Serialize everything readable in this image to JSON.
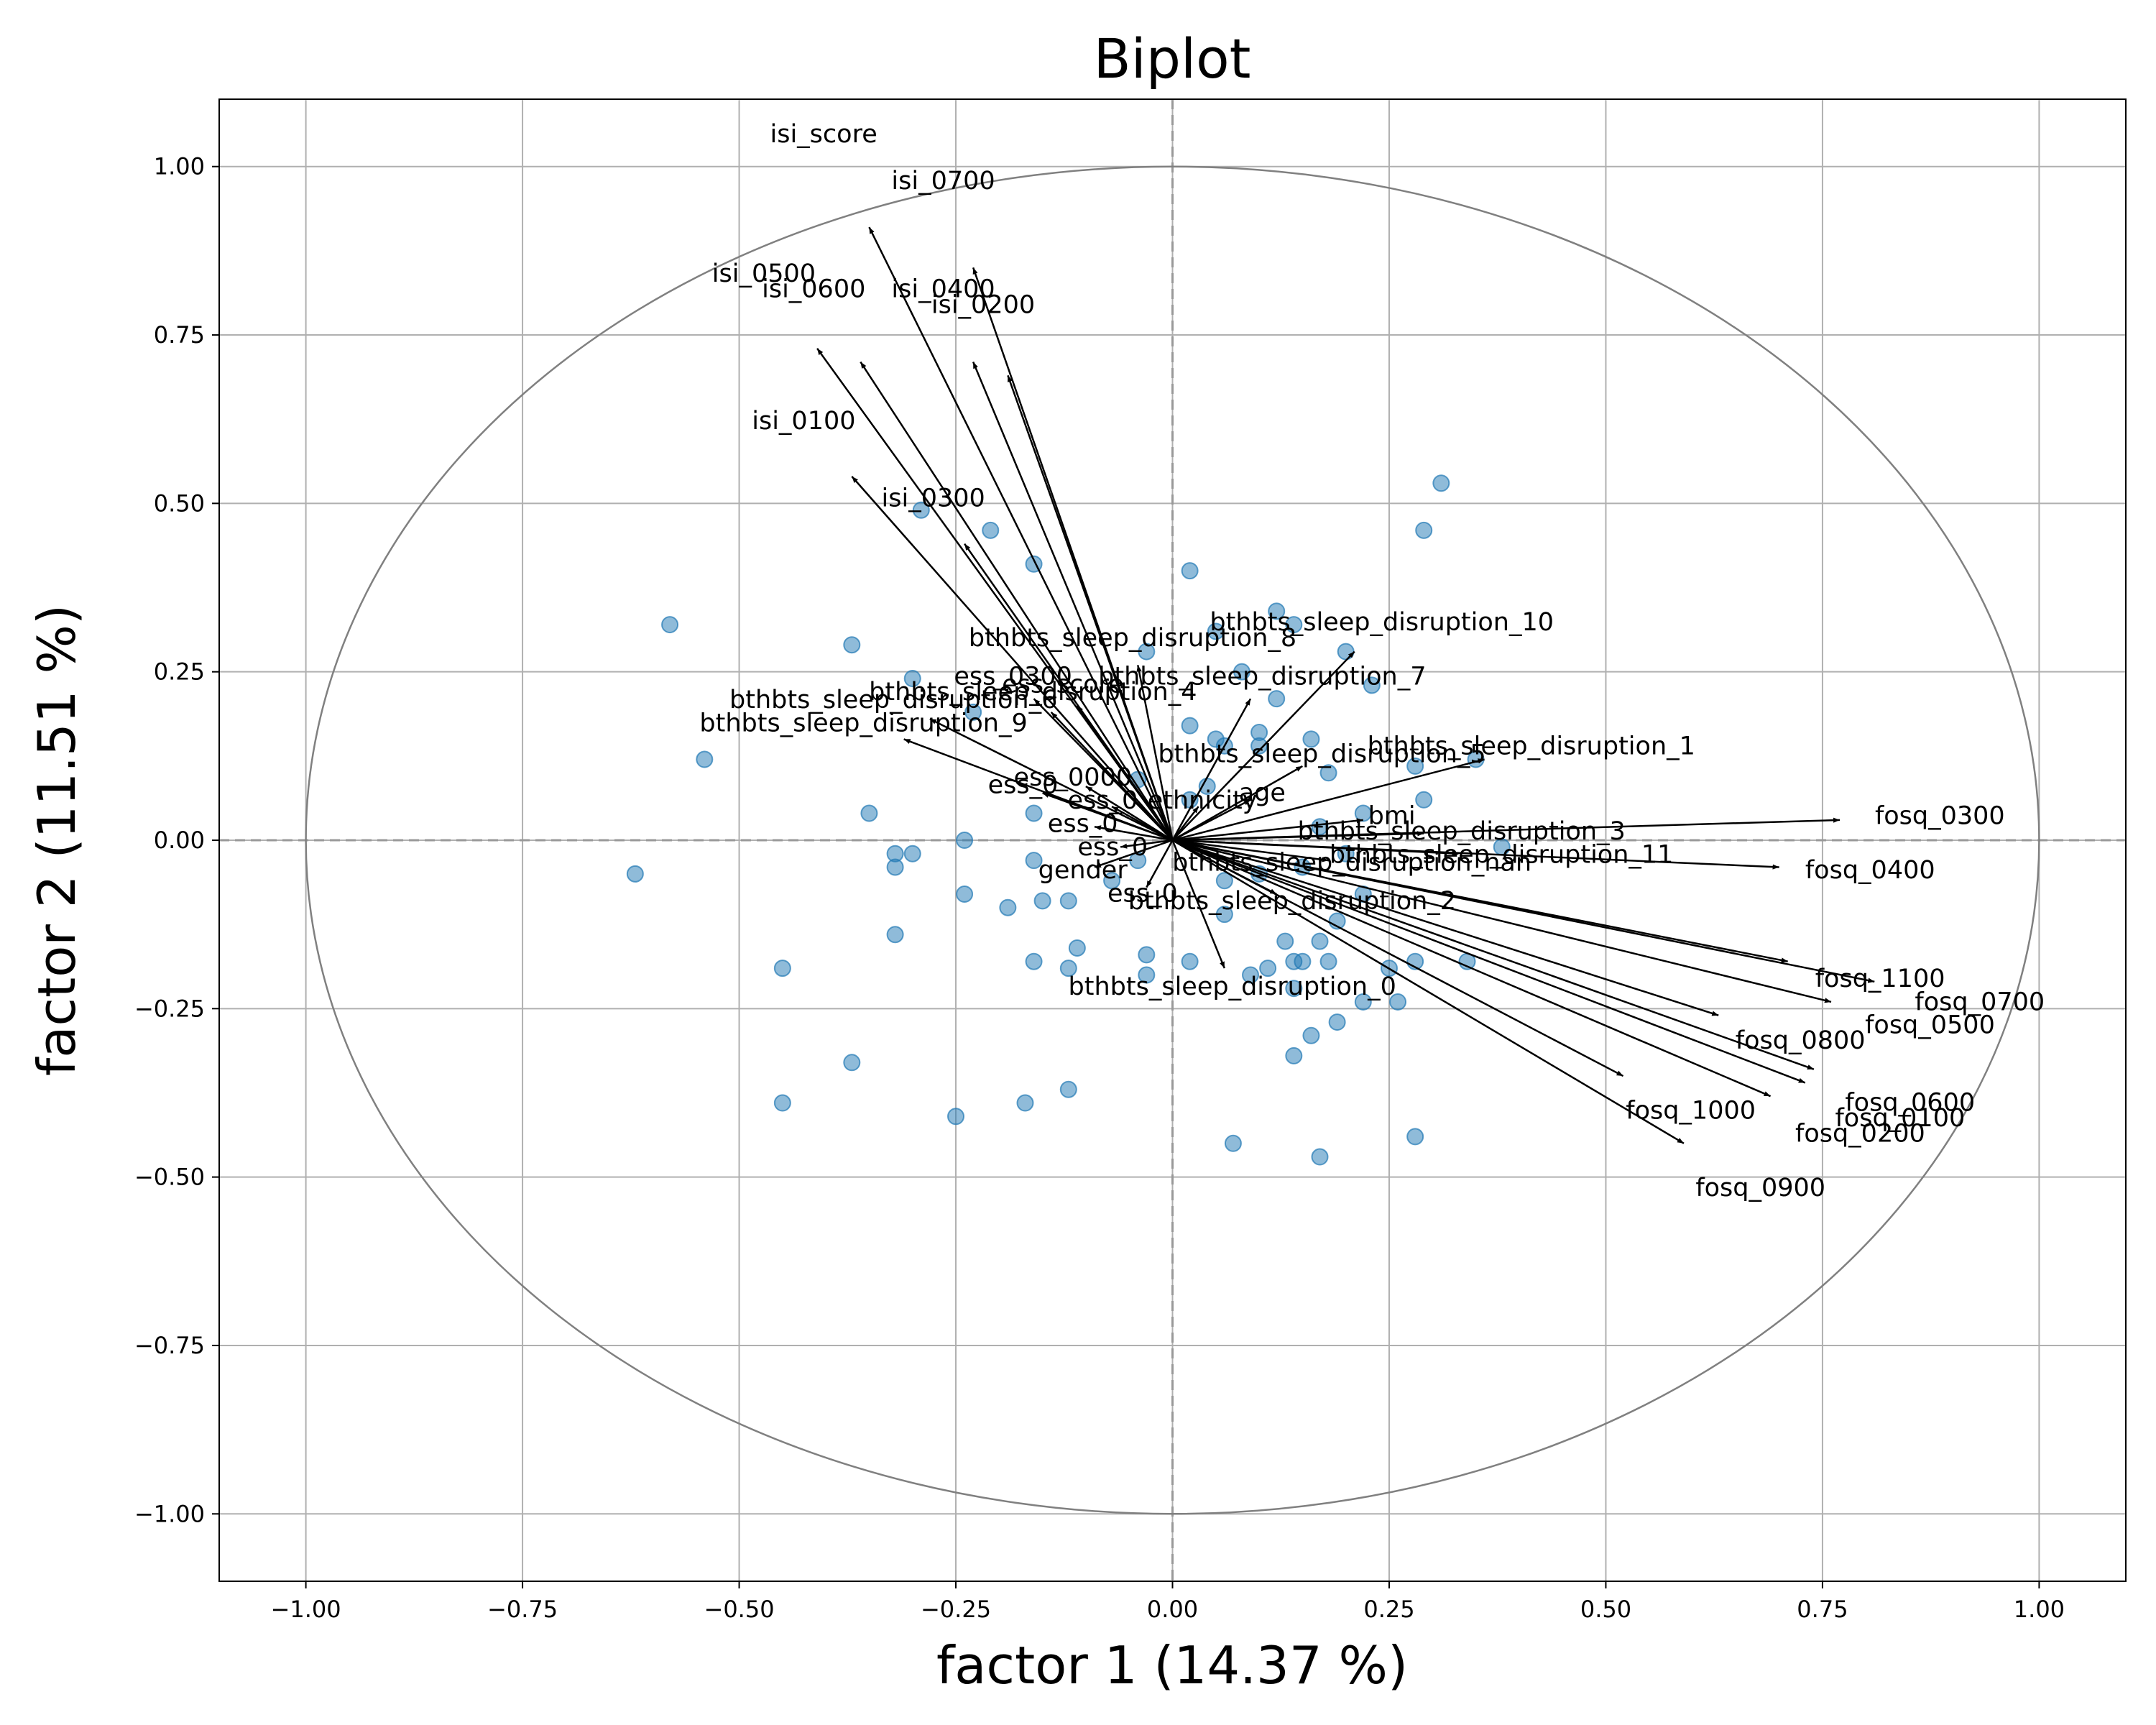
{
  "chart_data": {
    "type": "scatter",
    "title": "Biplot",
    "xlabel": "factor 1 (14.37 %)",
    "ylabel": "factor 2 (11.51 %)",
    "xlim": [
      -1.1,
      1.1
    ],
    "ylim": [
      -1.1,
      1.1
    ],
    "xticks": [
      -1.0,
      -0.75,
      -0.5,
      -0.25,
      0.0,
      0.25,
      0.5,
      0.75,
      1.0
    ],
    "yticks": [
      -1.0,
      -0.75,
      -0.5,
      -0.25,
      0.0,
      0.25,
      0.5,
      0.75,
      1.0
    ],
    "xtick_labels": [
      "−1.00",
      "−0.75",
      "−0.50",
      "−0.25",
      "0.00",
      "0.25",
      "0.50",
      "0.75",
      "1.00"
    ],
    "ytick_labels": [
      "−1.00",
      "−0.75",
      "−0.50",
      "−0.25",
      "0.00",
      "0.25",
      "0.50",
      "0.75",
      "1.00"
    ],
    "grid": true,
    "unit_circle": true,
    "colors": {
      "points": "#1f77b4",
      "vectors": "#000000",
      "circle": "#808080",
      "grid": "#b0b0b0",
      "zero_lines": "#999999"
    },
    "points": [
      [
        0.31,
        0.53
      ],
      [
        0.29,
        0.46
      ],
      [
        0.02,
        0.4
      ],
      [
        0.12,
        0.34
      ],
      [
        0.14,
        0.32
      ],
      [
        -0.21,
        0.46
      ],
      [
        -0.29,
        0.49
      ],
      [
        -0.16,
        0.41
      ],
      [
        -0.58,
        0.32
      ],
      [
        -0.37,
        0.29
      ],
      [
        -0.3,
        0.24
      ],
      [
        -0.23,
        0.19
      ],
      [
        -0.54,
        0.12
      ],
      [
        -0.35,
        0.04
      ],
      [
        -0.03,
        0.28
      ],
      [
        0.05,
        0.31
      ],
      [
        0.08,
        0.25
      ],
      [
        0.12,
        0.21
      ],
      [
        0.2,
        0.28
      ],
      [
        0.23,
        0.23
      ],
      [
        0.05,
        0.15
      ],
      [
        0.06,
        0.14
      ],
      [
        0.1,
        0.16
      ],
      [
        0.1,
        0.14
      ],
      [
        0.16,
        0.15
      ],
      [
        0.18,
        0.1
      ],
      [
        0.28,
        0.11
      ],
      [
        0.35,
        0.12
      ],
      [
        0.02,
        0.06
      ],
      [
        0.04,
        0.08
      ],
      [
        -0.04,
        0.09
      ],
      [
        0.02,
        0.17
      ],
      [
        0.29,
        0.06
      ],
      [
        0.22,
        0.04
      ],
      [
        0.17,
        0.02
      ],
      [
        0.38,
        -0.01
      ],
      [
        -0.16,
        0.04
      ],
      [
        -0.24,
        0.0
      ],
      [
        -0.3,
        -0.02
      ],
      [
        -0.32,
        -0.04
      ],
      [
        -0.32,
        -0.02
      ],
      [
        -0.62,
        -0.05
      ],
      [
        -0.16,
        -0.03
      ],
      [
        -0.24,
        -0.08
      ],
      [
        -0.19,
        -0.1
      ],
      [
        -0.15,
        -0.09
      ],
      [
        -0.12,
        -0.09
      ],
      [
        -0.07,
        -0.06
      ],
      [
        -0.04,
        -0.03
      ],
      [
        0.06,
        -0.06
      ],
      [
        0.1,
        -0.05
      ],
      [
        0.15,
        -0.04
      ],
      [
        0.2,
        -0.02
      ],
      [
        0.22,
        -0.08
      ],
      [
        0.06,
        -0.11
      ],
      [
        0.13,
        -0.15
      ],
      [
        0.17,
        -0.15
      ],
      [
        0.19,
        -0.12
      ],
      [
        -0.11,
        -0.16
      ],
      [
        -0.12,
        -0.19
      ],
      [
        -0.16,
        -0.18
      ],
      [
        -0.03,
        -0.17
      ],
      [
        -0.03,
        -0.2
      ],
      [
        0.02,
        -0.18
      ],
      [
        0.09,
        -0.2
      ],
      [
        0.11,
        -0.19
      ],
      [
        0.14,
        -0.18
      ],
      [
        0.15,
        -0.18
      ],
      [
        0.18,
        -0.18
      ],
      [
        0.14,
        -0.22
      ],
      [
        0.25,
        -0.19
      ],
      [
        0.28,
        -0.18
      ],
      [
        0.22,
        -0.24
      ],
      [
        0.26,
        -0.24
      ],
      [
        0.19,
        -0.27
      ],
      [
        0.16,
        -0.29
      ],
      [
        0.14,
        -0.32
      ],
      [
        0.34,
        -0.18
      ],
      [
        -0.32,
        -0.14
      ],
      [
        -0.45,
        -0.19
      ],
      [
        -0.37,
        -0.33
      ],
      [
        -0.45,
        -0.39
      ],
      [
        -0.25,
        -0.41
      ],
      [
        -0.17,
        -0.39
      ],
      [
        -0.12,
        -0.37
      ],
      [
        0.07,
        -0.45
      ],
      [
        0.17,
        -0.47
      ],
      [
        0.28,
        -0.44
      ]
    ],
    "vectors": [
      {
        "label": "isi_score",
        "x": -0.35,
        "y": 0.91
      },
      {
        "label": "isi_0700",
        "x": -0.23,
        "y": 0.85
      },
      {
        "label": "isi_0500",
        "x": -0.41,
        "y": 0.73
      },
      {
        "label": "isi_0600",
        "x": -0.36,
        "y": 0.71
      },
      {
        "label": "isi_0400",
        "x": -0.23,
        "y": 0.71
      },
      {
        "label": "isi_0200",
        "x": -0.19,
        "y": 0.69
      },
      {
        "label": "isi_0100",
        "x": -0.37,
        "y": 0.54
      },
      {
        "label": "isi_0300",
        "x": -0.24,
        "y": 0.44
      },
      {
        "label": "bthbts_sleep_disruption_8",
        "x": -0.04,
        "y": 0.26
      },
      {
        "label": "bthbts_sleep_disruption_10",
        "x": 0.21,
        "y": 0.28
      },
      {
        "label": "bthbts_sleep_disruption_7",
        "x": 0.09,
        "y": 0.21
      },
      {
        "label": "ess_0300",
        "x": -0.16,
        "y": 0.21
      },
      {
        "label": "bthbts_sleep_disruption_4",
        "x": -0.14,
        "y": 0.19
      },
      {
        "label": "ess_score",
        "x": -0.11,
        "y": 0.2
      },
      {
        "label": "bthbts_sleep_disruption_6",
        "x": -0.28,
        "y": 0.18
      },
      {
        "label": "bthbts_sleep_disruption_1",
        "x": 0.36,
        "y": 0.12
      },
      {
        "label": "bthbts_sleep_disruption_9",
        "x": -0.31,
        "y": 0.15
      },
      {
        "label": "ess_0000",
        "x": -0.1,
        "y": 0.08
      },
      {
        "label": "bthbts_sleep_disruption_5",
        "x": 0.15,
        "y": 0.11
      },
      {
        "label": "bthbts_sleep_disruption_3",
        "x": 0.29,
        "y": 0.01
      },
      {
        "label": "bthbts_sleep_disruption_11",
        "x": 0.33,
        "y": -0.02
      },
      {
        "label": "bthbts_sleep_disruption_nan",
        "x": 0.18,
        "y": -0.03
      },
      {
        "label": "bthbts_sleep_disruption_2",
        "x": 0.12,
        "y": -0.08
      },
      {
        "label": "bthbts_sleep_disruption_0",
        "x": 0.06,
        "y": -0.19
      },
      {
        "label": "ess_0",
        "x": -0.09,
        "y": 0.02
      },
      {
        "label": "ess_0",
        "x": -0.06,
        "y": -0.01
      },
      {
        "label": "ess_0",
        "x": -0.07,
        "y": 0.05
      },
      {
        "label": "ess_0",
        "x": -0.15,
        "y": 0.07
      },
      {
        "label": "ess_0",
        "x": -0.03,
        "y": -0.07
      },
      {
        "label": "ethnicity",
        "x": 0.03,
        "y": 0.05
      },
      {
        "label": "age",
        "x": 0.09,
        "y": 0.06
      },
      {
        "label": "bmi",
        "x": 0.22,
        "y": 0.03
      },
      {
        "label": "gender",
        "x": -0.09,
        "y": -0.04
      },
      {
        "label": "fosq_0300",
        "x": 0.77,
        "y": 0.03
      },
      {
        "label": "fosq_0400",
        "x": 0.7,
        "y": -0.04
      },
      {
        "label": "fosq_0700",
        "x": 0.81,
        "y": -0.21
      },
      {
        "label": "fosq_0500",
        "x": 0.76,
        "y": -0.24
      },
      {
        "label": "fosq_1100",
        "x": 0.71,
        "y": -0.18
      },
      {
        "label": "fosq_0800",
        "x": 0.63,
        "y": -0.26
      },
      {
        "label": "fosq_1000",
        "x": 0.52,
        "y": -0.35
      },
      {
        "label": "fosq_0100",
        "x": 0.73,
        "y": -0.36
      },
      {
        "label": "fosq_0600",
        "x": 0.74,
        "y": -0.34
      },
      {
        "label": "fosq_0200",
        "x": 0.69,
        "y": -0.38
      },
      {
        "label": "fosq_0900",
        "x": 0.59,
        "y": -0.45
      }
    ]
  }
}
